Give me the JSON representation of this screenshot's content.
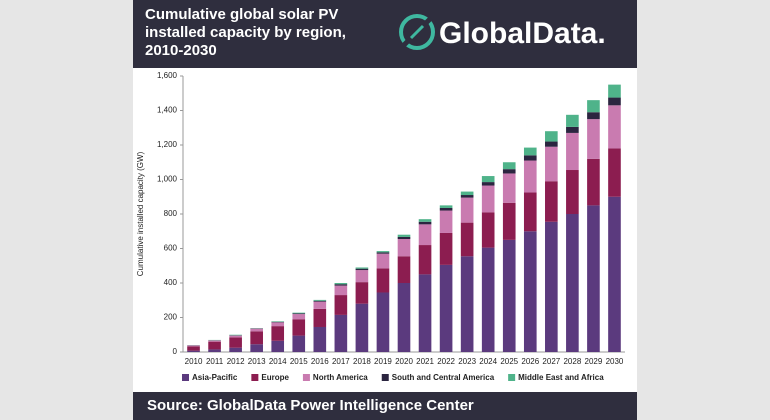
{
  "header": {
    "title": "Cumulative global solar PV installed capacity by region, 2010-2030",
    "logo": "GlobalData."
  },
  "footer": {
    "source": "Source:  GlobalData Power Intelligence Center"
  },
  "chart_data": {
    "type": "stacked-bar",
    "y_label": "Cumulative installed capacity (GW)",
    "categories": [
      "2010",
      "2011",
      "2012",
      "2013",
      "2014",
      "2015",
      "2016",
      "2017",
      "2018",
      "2019",
      "2020",
      "2021",
      "2022",
      "2023",
      "2024",
      "2025",
      "2026",
      "2027",
      "2028",
      "2029",
      "2030"
    ],
    "series": [
      {
        "name": "Asia-Pacific",
        "color": "#5b3a7e",
        "values": [
          8,
          15,
          25,
          45,
          65,
          95,
          145,
          215,
          280,
          345,
          400,
          450,
          505,
          555,
          605,
          650,
          700,
          755,
          800,
          850,
          900
        ]
      },
      {
        "name": "Europe",
        "color": "#8c1d50",
        "values": [
          25,
          45,
          60,
          75,
          85,
          95,
          105,
          115,
          125,
          140,
          155,
          170,
          185,
          195,
          205,
          215,
          225,
          235,
          255,
          270,
          280
        ]
      },
      {
        "name": "North America",
        "color": "#c97bb0",
        "values": [
          5,
          7,
          10,
          15,
          22,
          30,
          42,
          55,
          70,
          85,
          100,
          120,
          130,
          145,
          155,
          170,
          185,
          200,
          215,
          230,
          250
        ]
      },
      {
        "name": "South and Central America",
        "color": "#2b2540",
        "values": [
          1,
          1,
          2,
          2,
          3,
          4,
          5,
          8,
          8,
          8,
          12,
          15,
          15,
          15,
          20,
          25,
          30,
          30,
          35,
          40,
          45
        ]
      },
      {
        "name": "Middle East and Africa",
        "color": "#4fb38a",
        "values": [
          1,
          2,
          3,
          1,
          3,
          4,
          5,
          7,
          7,
          7,
          13,
          15,
          15,
          20,
          35,
          40,
          45,
          60,
          70,
          70,
          75
        ]
      }
    ],
    "ylim": [
      0,
      1600
    ],
    "yticks": [
      0,
      200,
      400,
      600,
      800,
      {
        "value": 1000,
        "label": "1,000"
      },
      {
        "value": 1200,
        "label": "1,200"
      },
      {
        "value": 1400,
        "label": "1,400"
      },
      {
        "value": 1600,
        "label": "1,600"
      }
    ],
    "grid": false
  }
}
